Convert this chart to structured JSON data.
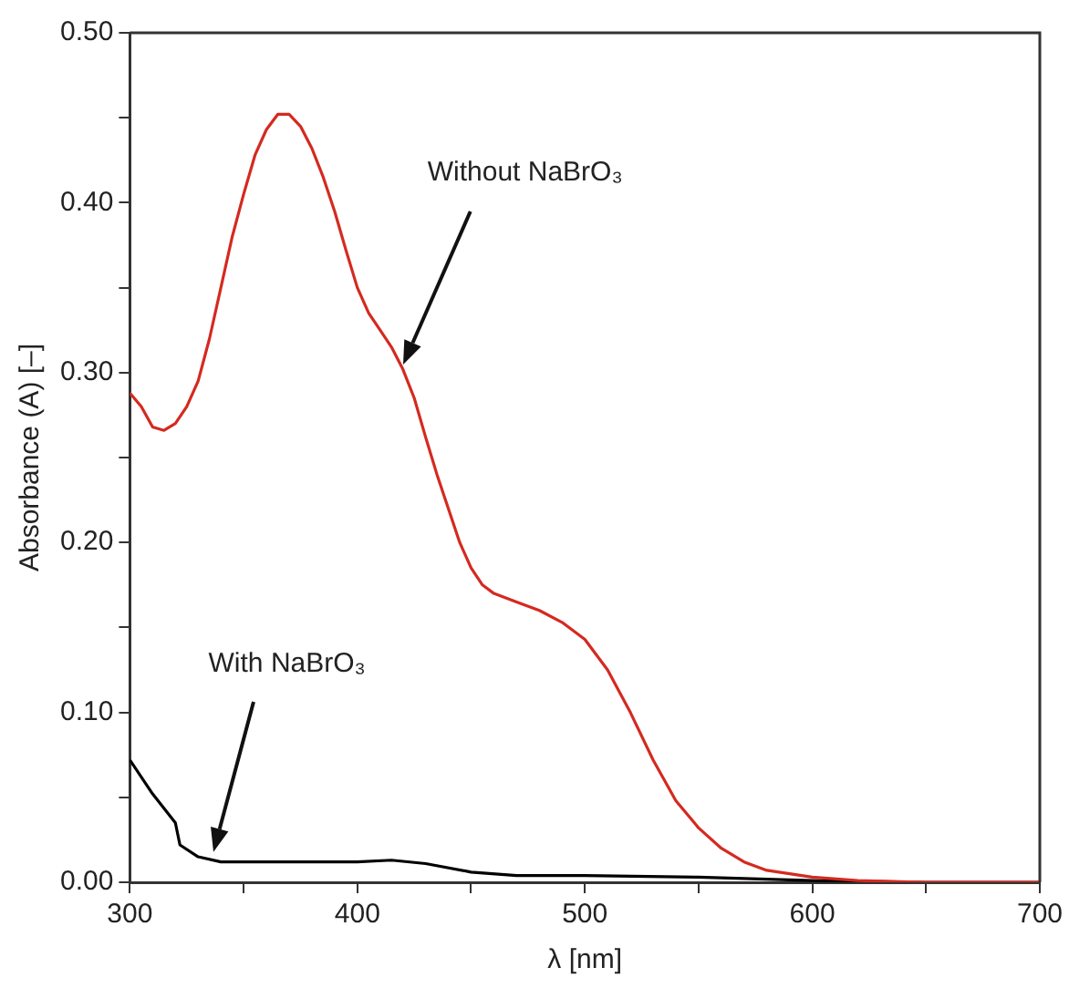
{
  "chart_data": {
    "type": "line",
    "xlabel": "λ [nm]",
    "ylabel": "Absorbance (A) [–]",
    "xlim": [
      300,
      700
    ],
    "ylim": [
      0,
      0.5
    ],
    "xticks": [
      300,
      {
        "value": 350,
        "label": null
      },
      400,
      {
        "value": 450,
        "label": null
      },
      500,
      {
        "value": 550,
        "label": null
      },
      600,
      {
        "value": 650,
        "label": null
      },
      700
    ],
    "yticks": [
      {
        "value": 0,
        "label": "0.00"
      },
      {
        "value": 0.05,
        "label": null
      },
      {
        "value": 0.1,
        "label": "0.10"
      },
      {
        "value": 0.15,
        "label": null
      },
      {
        "value": 0.2,
        "label": "0.20"
      },
      {
        "value": 0.25,
        "label": null
      },
      {
        "value": 0.3,
        "label": "0.30"
      },
      {
        "value": 0.35,
        "label": null
      },
      {
        "value": 0.4,
        "label": "0.40"
      },
      {
        "value": 0.45,
        "label": null
      },
      {
        "value": 0.5,
        "label": "0.50"
      }
    ],
    "grid": false,
    "legend": false,
    "marker": "none",
    "line_style": "solid",
    "series": [
      {
        "color": "#d42a20",
        "x": [
          300,
          305,
          310,
          315,
          320,
          325,
          330,
          335,
          340,
          345,
          350,
          355,
          360,
          365,
          370,
          375,
          380,
          385,
          390,
          395,
          400,
          405,
          410,
          415,
          420,
          425,
          430,
          435,
          440,
          445,
          450,
          455,
          460,
          470,
          480,
          490,
          500,
          510,
          520,
          530,
          540,
          550,
          560,
          570,
          580,
          600,
          620,
          650,
          700
        ],
        "values": [
          0.288,
          0.28,
          0.268,
          0.266,
          0.27,
          0.28,
          0.295,
          0.32,
          0.35,
          0.38,
          0.405,
          0.428,
          0.443,
          0.452,
          0.452,
          0.445,
          0.432,
          0.415,
          0.395,
          0.372,
          0.35,
          0.335,
          0.325,
          0.315,
          0.302,
          0.285,
          0.262,
          0.24,
          0.22,
          0.2,
          0.185,
          0.175,
          0.17,
          0.165,
          0.16,
          0.153,
          0.143,
          0.125,
          0.1,
          0.072,
          0.048,
          0.032,
          0.02,
          0.012,
          0.007,
          0.003,
          0.001,
          0,
          0
        ]
      },
      {
        "color": "#000000",
        "x": [
          300,
          310,
          320,
          322,
          330,
          340,
          360,
          400,
          415,
          430,
          450,
          470,
          500,
          550,
          600,
          650,
          700
        ],
        "values": [
          0.072,
          0.052,
          0.035,
          0.022,
          0.015,
          0.012,
          0.012,
          0.012,
          0.013,
          0.011,
          0.006,
          0.004,
          0.004,
          0.003,
          0.001,
          0,
          0
        ]
      }
    ],
    "annotations": [
      "Without NaBrO₃",
      "With NaBrO₃"
    ]
  }
}
